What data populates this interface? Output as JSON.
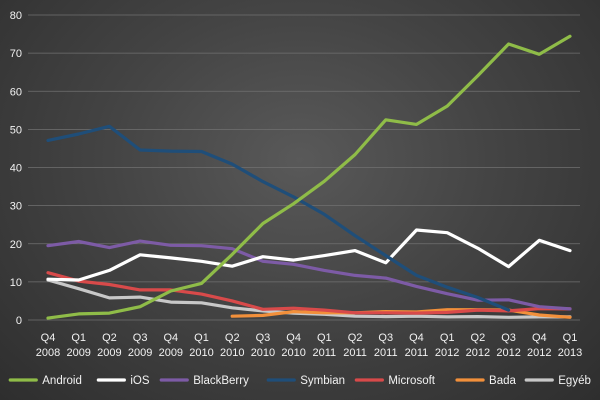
{
  "chart_data": {
    "type": "line",
    "categories": [
      [
        "Q4",
        "2008"
      ],
      [
        "Q1",
        "2009"
      ],
      [
        "Q2",
        "2009"
      ],
      [
        "Q3",
        "2009"
      ],
      [
        "Q4",
        "2009"
      ],
      [
        "Q1",
        "2010"
      ],
      [
        "Q2",
        "2010"
      ],
      [
        "Q3",
        "2010"
      ],
      [
        "Q4",
        "2010"
      ],
      [
        "Q1",
        "2011"
      ],
      [
        "Q2",
        "2011"
      ],
      [
        "Q3",
        "2011"
      ],
      [
        "Q4",
        "2011"
      ],
      [
        "Q1",
        "2012"
      ],
      [
        "Q2",
        "2012"
      ],
      [
        "Q3",
        "2012"
      ],
      [
        "Q4",
        "2012"
      ],
      [
        "Q1",
        "2013"
      ]
    ],
    "ylim": [
      0,
      80
    ],
    "yticks": [
      0,
      10,
      20,
      30,
      40,
      50,
      60,
      70,
      80
    ],
    "grid": true,
    "legend_position": "bottom",
    "series": [
      {
        "name": "Android",
        "color": "#8fbc48",
        "values": [
          0.5,
          1.6,
          1.8,
          3.5,
          7.6,
          9.6,
          17.2,
          25.3,
          30.5,
          36.4,
          43.4,
          52.5,
          51.3,
          56.1,
          64.1,
          72.4,
          69.7,
          74.4
        ]
      },
      {
        "name": "iOS",
        "color": "#ffffff",
        "values": [
          10.7,
          10.5,
          13.0,
          17.1,
          16.3,
          15.4,
          14.1,
          16.6,
          15.7,
          16.9,
          18.2,
          15.0,
          23.6,
          22.9,
          18.8,
          14.0,
          20.9,
          18.2
        ]
      },
      {
        "name": "BlackBerry",
        "color": "#7d5ba6",
        "values": [
          19.5,
          20.6,
          19.0,
          20.7,
          19.6,
          19.5,
          18.7,
          15.4,
          14.6,
          13.0,
          11.7,
          11.0,
          8.8,
          6.9,
          5.2,
          5.3,
          3.5,
          2.9
        ]
      },
      {
        "name": "Symbian",
        "color": "#1f4e79",
        "values": [
          47.1,
          48.8,
          50.8,
          44.6,
          44.3,
          44.2,
          40.9,
          36.3,
          32.3,
          27.7,
          22.1,
          16.9,
          11.7,
          8.6,
          5.9,
          2.6,
          null,
          null
        ]
      },
      {
        "name": "Microsoft",
        "color": "#d84a4a",
        "values": [
          12.4,
          10.2,
          9.3,
          7.9,
          7.9,
          6.8,
          5.0,
          2.8,
          3.1,
          2.6,
          1.9,
          1.9,
          1.8,
          2.0,
          2.6,
          2.4,
          3.0,
          2.9
        ]
      },
      {
        "name": "Bada",
        "color": "#f2903b",
        "values": [
          null,
          null,
          null,
          null,
          null,
          null,
          1.0,
          1.2,
          2.2,
          1.9,
          1.9,
          2.2,
          2.1,
          2.7,
          2.7,
          2.6,
          1.3,
          0.7
        ]
      },
      {
        "name": "Egyéb",
        "color": "#c8c8c8",
        "values": [
          10.5,
          8.2,
          5.8,
          6.0,
          4.7,
          4.5,
          3.2,
          2.4,
          1.8,
          1.5,
          1.0,
          0.9,
          1.0,
          0.8,
          0.9,
          0.7,
          0.8,
          0.8
        ]
      }
    ]
  }
}
